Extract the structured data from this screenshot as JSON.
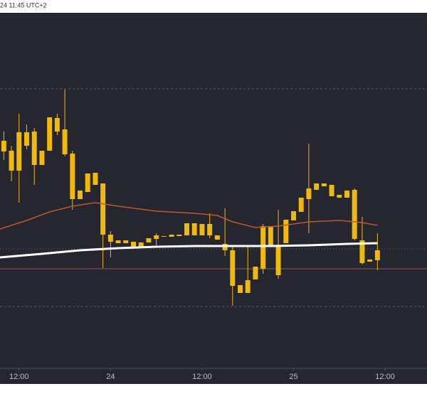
{
  "chart_data": {
    "type": "candlestick",
    "header": "24 11:45 UTC+2",
    "x": [
      0,
      1,
      2,
      3,
      4,
      5,
      6,
      7,
      8,
      9,
      10,
      11,
      12,
      13,
      14,
      15,
      16,
      17,
      18,
      19,
      20,
      21,
      22,
      23,
      24,
      25,
      26,
      27,
      28,
      29,
      30,
      31,
      32,
      33,
      34,
      35,
      36,
      37,
      38,
      39,
      40,
      41,
      42,
      43,
      44,
      45,
      46,
      47,
      48,
      49
    ],
    "open": [
      320,
      306,
      278,
      332,
      333,
      286,
      306,
      352,
      336,
      302,
      238,
      248,
      275,
      260,
      188,
      180,
      176,
      178,
      171,
      177,
      182,
      186,
      185,
      186,
      187,
      204,
      187,
      203,
      187,
      175,
      166,
      117,
      106,
      125,
      140,
      200,
      173,
      176,
      208,
      220,
      238,
      251,
      256,
      258,
      244,
      240,
      251,
      180,
      153,
      152
    ],
    "high": [
      333,
      313,
      358,
      343,
      338,
      306,
      353,
      358,
      392,
      306,
      250,
      274,
      275,
      260,
      193,
      180,
      180,
      178,
      177,
      183,
      190,
      186,
      188,
      188,
      204,
      204,
      203,
      218,
      187,
      225,
      173,
      117,
      173,
      143,
      203,
      200,
      223,
      209,
      221,
      240,
      316,
      260,
      260,
      258,
      244,
      250,
      253,
      213,
      153,
      190
    ],
    "low": [
      293,
      263,
      233,
      308,
      258,
      286,
      306,
      328,
      298,
      223,
      238,
      248,
      258,
      141,
      156,
      176,
      176,
      171,
      171,
      177,
      173,
      185,
      185,
      186,
      187,
      187,
      187,
      183,
      181,
      158,
      88,
      106,
      106,
      125,
      133,
      173,
      126,
      176,
      208,
      220,
      190,
      251,
      256,
      242,
      240,
      240,
      180,
      146,
      150,
      138
    ],
    "close": [
      305,
      278,
      332,
      313,
      286,
      306,
      353,
      333,
      301,
      238,
      250,
      274,
      258,
      188,
      178,
      176,
      180,
      171,
      177,
      183,
      187,
      185,
      188,
      188,
      204,
      187,
      203,
      187,
      181,
      166,
      116,
      106,
      124,
      143,
      200,
      173,
      131,
      209,
      221,
      240,
      253,
      260,
      260,
      242,
      240,
      250,
      182,
      148,
      150,
      166
    ],
    "color": "#f0b90b",
    "lines": [
      {
        "color": "#ffffff",
        "x": [
          -0.5,
          5,
          10,
          15,
          20,
          25,
          30,
          35,
          40,
          45,
          49
        ],
        "values": [
          156,
          161,
          166,
          169,
          171,
          172,
          172,
          172,
          173,
          175,
          176
        ]
      },
      {
        "color": "#c2572a",
        "x": [
          -0.5,
          3,
          6,
          9,
          12,
          15,
          20,
          25,
          28,
          30,
          33,
          36,
          40,
          44,
          47,
          49
        ],
        "values": [
          196,
          208,
          220,
          228,
          233,
          228,
          221,
          218,
          215,
          206,
          198,
          200,
          206,
          208,
          205,
          201
        ]
      }
    ],
    "levels": [
      393,
      168,
      140,
      87
    ],
    "xlim": [
      -0.5,
      55.5
    ],
    "ylim": [
      0,
      500
    ],
    "xticks": [
      {
        "value": 2,
        "label": "12:00"
      },
      {
        "value": 14,
        "label": "24"
      },
      {
        "value": 26,
        "label": "12:00"
      },
      {
        "value": 38,
        "label": "25"
      },
      {
        "value": 50,
        "label": "12:00"
      }
    ]
  }
}
